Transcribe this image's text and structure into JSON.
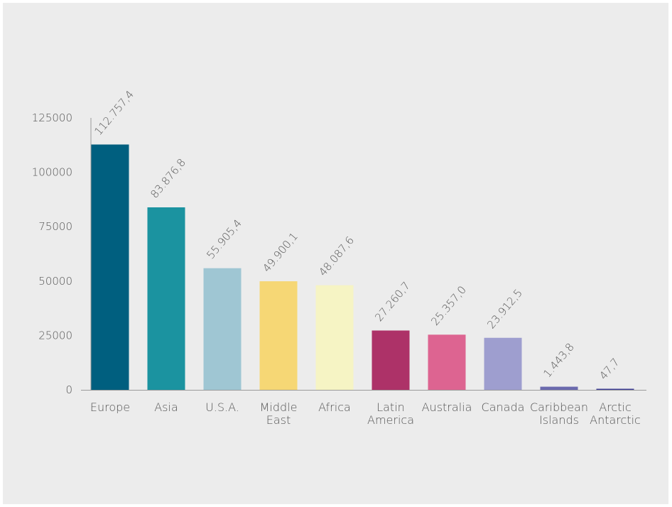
{
  "chart_data": {
    "type": "bar",
    "title": "",
    "xlabel": "",
    "ylabel": "",
    "ylim": [
      0,
      125000
    ],
    "yticks": [
      0,
      25000,
      50000,
      75000,
      100000,
      125000
    ],
    "ytick_labels": [
      "0",
      "25000",
      "50000",
      "75000",
      "100000",
      "125000"
    ],
    "grid": false,
    "categories": [
      [
        "Europe"
      ],
      [
        "Asia"
      ],
      [
        "U.S.A."
      ],
      [
        "Middle",
        "East"
      ],
      [
        "Africa"
      ],
      [
        "Latin",
        "America"
      ],
      [
        "Australia"
      ],
      [
        "Canada"
      ],
      [
        "Caribbean",
        "Islands"
      ],
      [
        "Arctic",
        "Antarctic"
      ]
    ],
    "values": [
      112757.4,
      83876.8,
      55905.4,
      49900.1,
      48087.6,
      27260.7,
      25357.0,
      23912.5,
      1443.8,
      47.7
    ],
    "value_labels": [
      "112.757,4",
      "83.876,8",
      "55.905,4",
      "49.900,1",
      "48.087,6",
      "27.260,7",
      "25.357,0",
      "23.912,5",
      "1.443,8",
      "47,7"
    ],
    "colors": [
      "#005f7f",
      "#1b93a0",
      "#9fc6d3",
      "#f6d775",
      "#f6f4c4",
      "#ad3268",
      "#dd6491",
      "#9e9ecf",
      "#6b6aae",
      "#3e3e96"
    ]
  }
}
